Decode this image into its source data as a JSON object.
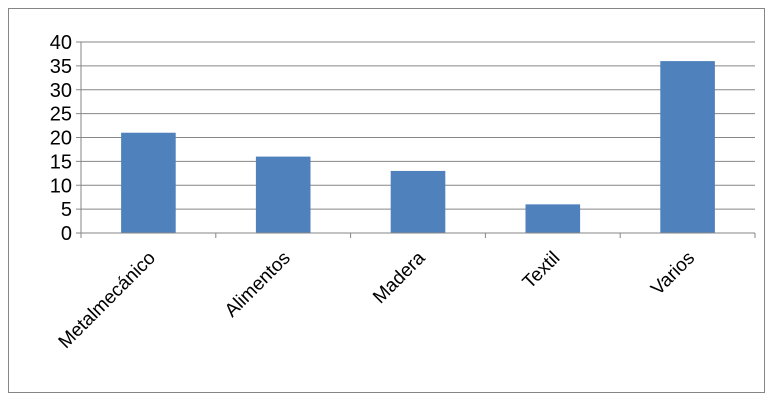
{
  "chart_data": {
    "type": "bar",
    "title": "",
    "xlabel": "",
    "ylabel": "",
    "categories": [
      "Metalmecánico",
      "Alimentos",
      "Madera",
      "Textil",
      "Varios"
    ],
    "values": [
      21,
      16,
      13,
      6,
      36
    ],
    "ylim": [
      0,
      40
    ],
    "yticks": [
      0,
      5,
      10,
      15,
      20,
      25,
      30,
      35,
      40
    ],
    "grid": true,
    "legend": "none",
    "bar_color": "#4f81bd"
  }
}
